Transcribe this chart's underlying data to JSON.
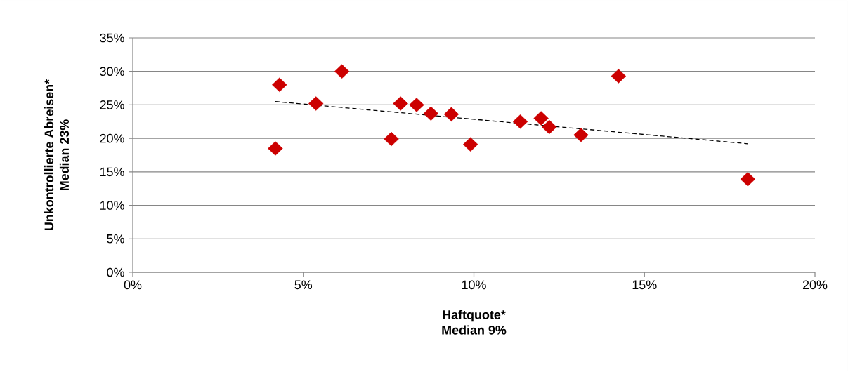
{
  "chart_data": {
    "type": "scatter",
    "xlabel": "Haftquote*\nMedian 9%",
    "ylabel": "Unkontrollierte Abreisen*\nMedian 23%",
    "xlim": [
      0,
      20
    ],
    "ylim": [
      0,
      35
    ],
    "xticks": [
      {
        "value": 0,
        "label": "0%"
      },
      {
        "value": 5,
        "label": "5%"
      },
      {
        "value": 10,
        "label": "10%"
      },
      {
        "value": 15,
        "label": "15%"
      },
      {
        "value": 20,
        "label": "20%"
      }
    ],
    "yticks": [
      {
        "value": 0,
        "label": "0%"
      },
      {
        "value": 5,
        "label": "5%"
      },
      {
        "value": 10,
        "label": "10%"
      },
      {
        "value": 15,
        "label": "15%"
      },
      {
        "value": 20,
        "label": "20%"
      },
      {
        "value": 25,
        "label": "25%"
      },
      {
        "value": 30,
        "label": "30%"
      },
      {
        "value": 35,
        "label": "35%"
      }
    ],
    "grid": "y",
    "legend": false,
    "marker": "diamond",
    "series": [
      {
        "color": "#cc0000",
        "x": [
          4.18,
          4.3,
          5.37,
          6.13,
          7.58,
          7.85,
          8.32,
          8.74,
          9.34,
          9.9,
          11.36,
          11.97,
          12.21,
          13.14,
          14.24,
          18.03
        ],
        "values": [
          18.5,
          28.0,
          25.2,
          30.0,
          19.9,
          25.2,
          25.0,
          23.7,
          23.6,
          19.1,
          22.5,
          23.0,
          21.7,
          20.5,
          29.3,
          13.9
        ]
      },
      {
        "type": "line",
        "color": "#000000",
        "marker": "none",
        "line_style": "dashed",
        "x": [
          4.18,
          18.03
        ],
        "values": [
          25.5,
          19.2
        ]
      }
    ]
  }
}
